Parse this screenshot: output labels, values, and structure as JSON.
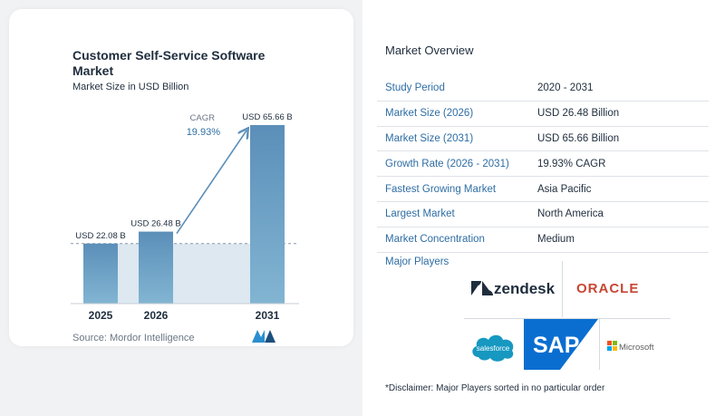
{
  "chart_data": {
    "type": "bar",
    "title": "Customer Self-Service Software Market",
    "subtitle": "Market Size in USD Billion",
    "categories": [
      "2025",
      "2026",
      "2031"
    ],
    "values": [
      22.08,
      26.48,
      65.66
    ],
    "data_labels": [
      "USD 22.08 B",
      "USD 26.48 B",
      "USD 65.66 B"
    ],
    "cagr_label": "CAGR",
    "cagr_value": "19.93%",
    "ylim": [
      0,
      70
    ],
    "grid": false
  },
  "source": "Source:  Mordor Intelligence",
  "overview": {
    "title": "Market Overview",
    "rows": [
      {
        "key": "Study Period",
        "value": "2020 - 2031"
      },
      {
        "key": "Market Size (2026)",
        "value": "USD 26.48 Billion"
      },
      {
        "key": "Market Size (2031)",
        "value": "USD 65.66 Billion"
      },
      {
        "key": "Growth Rate (2026 - 2031)",
        "value": "19.93% CAGR"
      },
      {
        "key": "Fastest Growing Market",
        "value": "Asia Pacific"
      },
      {
        "key": "Largest Market",
        "value": "North America"
      },
      {
        "key": "Market Concentration",
        "value": "Medium"
      }
    ]
  },
  "players": {
    "title": "Major Players",
    "logos": [
      "zendesk",
      "ORACLE",
      "salesforce",
      "SAP",
      "Microsoft"
    ]
  },
  "disclaimer": "*Disclaimer: Major Players sorted in no particular order",
  "colors": {
    "bar_top": "#5b8fb9",
    "bar_bottom": "#7fb2cf",
    "accent": "#2e6da4",
    "band": "#dde8f1"
  }
}
